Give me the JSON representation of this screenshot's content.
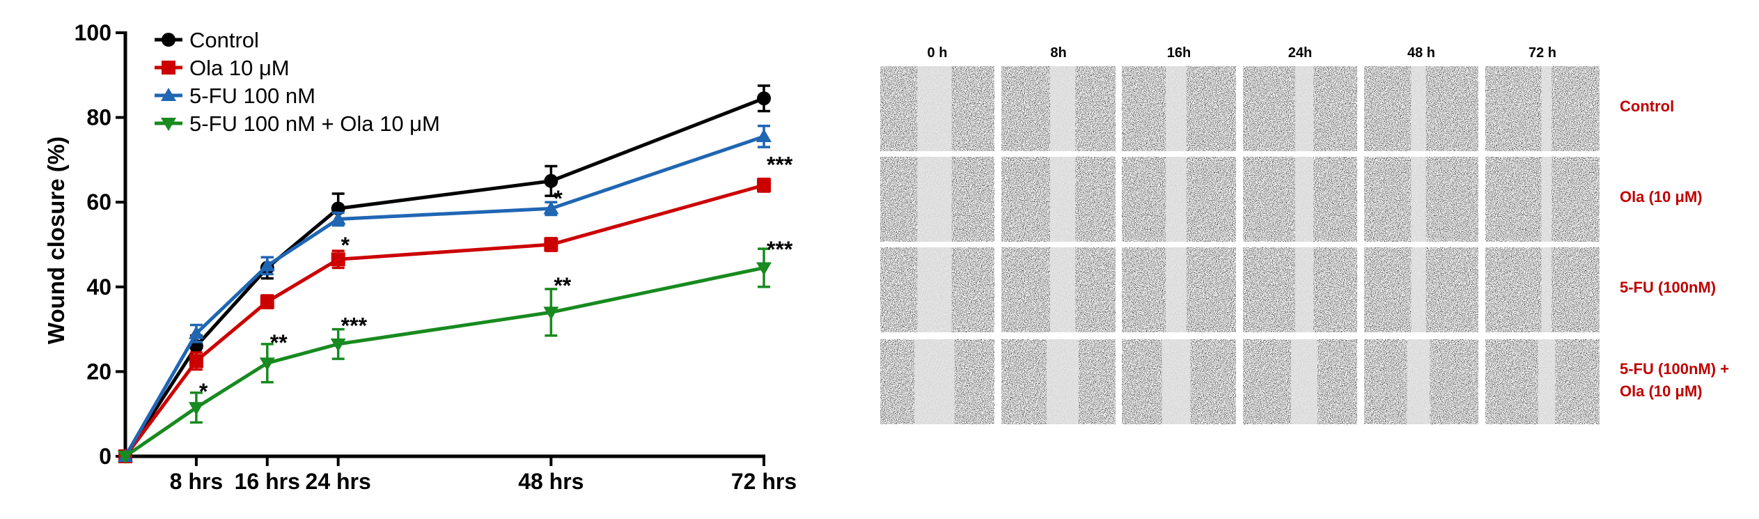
{
  "chart_data": {
    "type": "line",
    "xlabel": "",
    "ylabel": "Wound closure (%)",
    "ylim": [
      0,
      100
    ],
    "yticks": [
      0,
      20,
      40,
      60,
      80,
      100
    ],
    "xlim": [
      0,
      72
    ],
    "xticks": [
      {
        "value": 8,
        "label": "8 hrs"
      },
      {
        "value": 16,
        "label": "16 hrs"
      },
      {
        "value": 24,
        "label": "24 hrs"
      },
      {
        "value": 48,
        "label": "48 hrs"
      },
      {
        "value": 72,
        "label": "72 hrs"
      }
    ],
    "x": [
      0,
      8,
      16,
      24,
      48,
      72
    ],
    "legend_position": "top-left",
    "grid": false,
    "series": [
      {
        "name": "Control",
        "color": "#000000",
        "marker": "circle",
        "values": [
          0,
          26,
          44.5,
          58.5,
          65,
          84.5
        ],
        "errors": [
          0,
          2.5,
          2.5,
          3.5,
          3.5,
          3
        ]
      },
      {
        "name": "Ola 10 μM",
        "color": "#cc0000",
        "marker": "square",
        "values": [
          0,
          22.5,
          36.5,
          46.5,
          50,
          64
        ],
        "errors": [
          0,
          2,
          1.5,
          2,
          1.5,
          1.5
        ]
      },
      {
        "name": "5-FU 100 nM",
        "color": "#1f66b3",
        "marker": "triangle-up",
        "values": [
          0,
          29,
          45,
          56,
          58.5,
          75.5
        ],
        "errors": [
          0,
          2,
          2,
          1.5,
          1.5,
          2.5
        ]
      },
      {
        "name": "5-FU 100 nM + Ola 10 μM",
        "color": "#188a1f",
        "marker": "triangle-down",
        "values": [
          0,
          11.5,
          22,
          26.5,
          34,
          44.5
        ],
        "errors": [
          0,
          3.5,
          4.5,
          3.5,
          5.5,
          4.5
        ]
      }
    ],
    "annotations": [
      {
        "x": 8,
        "y": 15.5,
        "text": "*"
      },
      {
        "x": 16,
        "y": 27,
        "text": "**"
      },
      {
        "x": 24,
        "y": 31,
        "text": "***"
      },
      {
        "x": 24,
        "y": 50,
        "text": "*"
      },
      {
        "x": 48,
        "y": 40.5,
        "text": "**"
      },
      {
        "x": 48,
        "y": 61,
        "text": "*"
      },
      {
        "x": 72,
        "y": 69,
        "text": "***"
      },
      {
        "x": 72,
        "y": 49,
        "text": "***"
      }
    ]
  },
  "micrographs": {
    "columns": [
      "0 h",
      "8h",
      "16h",
      "24h",
      "48 h",
      "72 h"
    ],
    "rows": [
      {
        "label_lines": [
          "Control"
        ]
      },
      {
        "label_lines": [
          "Ola (10 μM)"
        ]
      },
      {
        "label_lines": [
          "5-FU (100nM)"
        ]
      },
      {
        "label_lines": [
          "5-FU (100nM) +",
          "Ola (10 μM)"
        ]
      }
    ],
    "label_color": "#c00000"
  }
}
